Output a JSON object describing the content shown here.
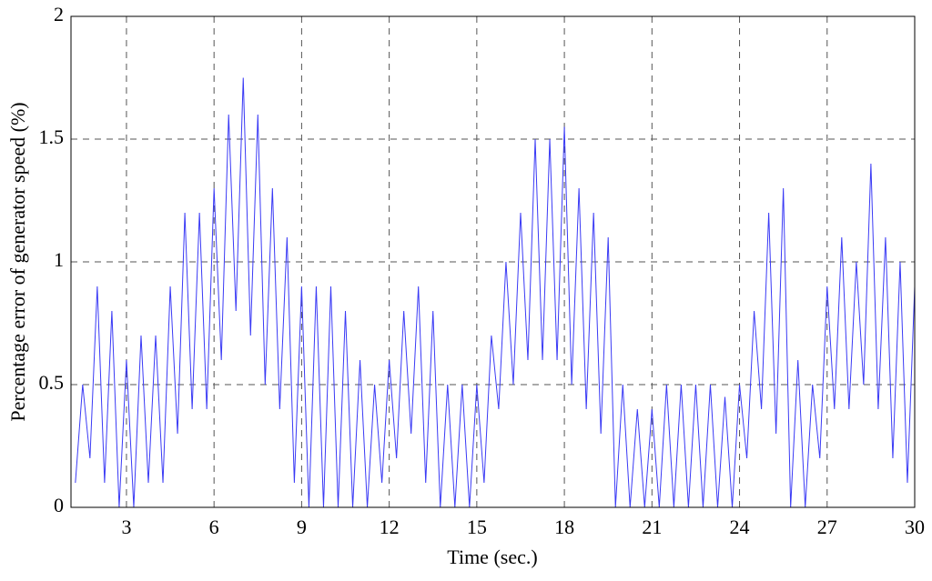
{
  "chart_data": {
    "type": "line",
    "xlabel": "Time (sec.)",
    "ylabel": "Percentage error of generator speed (%)",
    "x": [
      1.25,
      1.5,
      1.75,
      2,
      2.25,
      2.5,
      2.75,
      3,
      3.25,
      3.5,
      3.75,
      4,
      4.25,
      4.5,
      4.75,
      5,
      5.25,
      5.5,
      5.75,
      6,
      6.25,
      6.5,
      6.75,
      7,
      7.25,
      7.5,
      7.75,
      8,
      8.25,
      8.5,
      8.75,
      9,
      9.25,
      9.5,
      9.75,
      10,
      10.25,
      10.5,
      10.75,
      11,
      11.25,
      11.5,
      11.75,
      12,
      12.25,
      12.5,
      12.75,
      13,
      13.25,
      13.5,
      13.75,
      14,
      14.25,
      14.5,
      14.75,
      15,
      15.25,
      15.5,
      15.75,
      16,
      16.25,
      16.5,
      16.75,
      17,
      17.25,
      17.5,
      17.75,
      18,
      18.25,
      18.5,
      18.75,
      19,
      19.25,
      19.5,
      19.75,
      20,
      20.25,
      20.5,
      20.75,
      21,
      21.25,
      21.5,
      21.75,
      22,
      22.25,
      22.5,
      22.75,
      23,
      23.25,
      23.5,
      23.75,
      24,
      24.25,
      24.5,
      24.75,
      25,
      25.25,
      25.5,
      25.75,
      26,
      26.25,
      26.5,
      26.75,
      27,
      27.25,
      27.5,
      27.75,
      28,
      28.25,
      28.5,
      28.75,
      29,
      29.25,
      29.5,
      29.75,
      30
    ],
    "series": [
      {
        "color": "#3a3af5",
        "values": [
          0.1,
          0.5,
          0.2,
          0.9,
          0.1,
          0.8,
          0,
          0.6,
          0,
          0.7,
          0.1,
          0.7,
          0.1,
          0.9,
          0.3,
          1.2,
          0.4,
          1.2,
          0.4,
          1.3,
          0.6,
          1.6,
          0.8,
          1.75,
          0.7,
          1.6,
          0.5,
          1.3,
          0.4,
          1.1,
          0.1,
          0.9,
          0,
          0.9,
          0,
          0.9,
          0,
          0.8,
          0,
          0.6,
          0,
          0.5,
          0.1,
          0.6,
          0.2,
          0.8,
          0.3,
          0.9,
          0.1,
          0.8,
          0,
          0.5,
          0,
          0.5,
          0,
          0.5,
          0.1,
          0.7,
          0.4,
          1.0,
          0.5,
          1.2,
          0.6,
          1.5,
          0.6,
          1.5,
          0.6,
          1.55,
          0.5,
          1.3,
          0.4,
          1.2,
          0.3,
          1.1,
          0,
          0.5,
          0,
          0.4,
          0,
          0.4,
          0,
          0.5,
          0,
          0.5,
          0,
          0.5,
          0,
          0.5,
          0,
          0.45,
          0,
          0.5,
          0.2,
          0.8,
          0.4,
          1.2,
          0.3,
          1.3,
          0,
          0.6,
          0,
          0.5,
          0.2,
          0.9,
          0.4,
          1.1,
          0.4,
          1.0,
          0.5,
          1.4,
          0.4,
          1.1,
          0.2,
          1.0,
          0.1,
          0.9
        ]
      }
    ],
    "xlim": [
      1.1,
      30
    ],
    "xticks": [
      3,
      6,
      9,
      12,
      15,
      18,
      21,
      24,
      27,
      30
    ],
    "ylim": [
      0,
      2
    ],
    "yticks": [
      0,
      0.5,
      1,
      1.5,
      2
    ],
    "grid": true
  }
}
